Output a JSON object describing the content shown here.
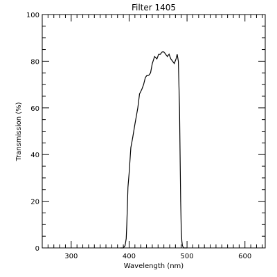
{
  "chart_data": {
    "type": "line",
    "title": "Filter  1405",
    "xlabel": "Wavelength (nm)",
    "ylabel": "Transmission (%)",
    "xlim": [
      250,
      635
    ],
    "ylim": [
      0,
      100
    ],
    "xticks": [
      300,
      400,
      500,
      600
    ],
    "yticks": [
      0,
      20,
      40,
      60,
      80,
      100
    ],
    "x_minor_step": 10,
    "y_minor_step": 5,
    "grid": false,
    "line_color": "#000000",
    "series": [
      {
        "x": [
          385,
          390,
          393,
          395,
          396,
          397,
          398,
          400,
          403,
          406,
          410,
          415,
          418,
          420,
          422,
          425,
          428,
          431,
          434,
          437,
          440,
          444,
          448,
          451,
          454,
          457,
          460,
          463,
          466,
          469,
          472,
          475,
          478,
          481,
          483,
          485,
          487,
          488,
          489,
          490,
          491,
          492,
          494,
          500
        ],
        "y": [
          0,
          0,
          1,
          4,
          10,
          18,
          26,
          32,
          43,
          47,
          53,
          60,
          66,
          67,
          68,
          70,
          73,
          74,
          74,
          75,
          79,
          82,
          81,
          83,
          83,
          84,
          84,
          83,
          82,
          83,
          81,
          80,
          79,
          81,
          83,
          80,
          60,
          40,
          20,
          8,
          3,
          1,
          0,
          0
        ]
      }
    ]
  }
}
